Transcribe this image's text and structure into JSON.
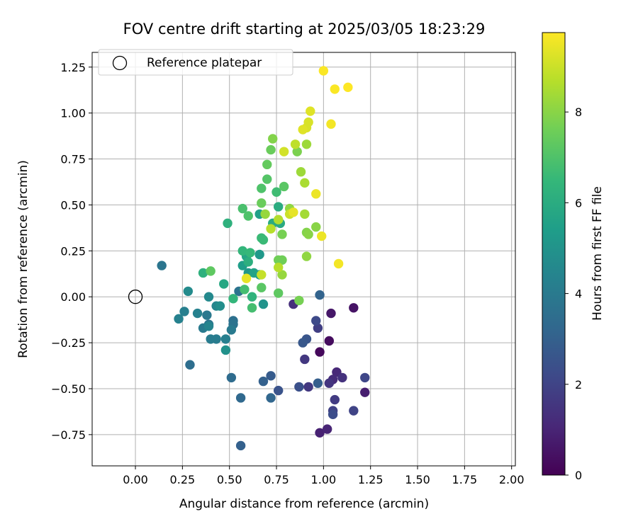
{
  "chart_data": {
    "type": "scatter",
    "title": "FOV centre drift starting at 2025/03/05 18:23:29",
    "xlabel": "Angular distance from reference (arcmin)",
    "ylabel": "Rotation from reference (arcmin)",
    "xlim": [
      -0.23,
      2.02
    ],
    "ylim": [
      -0.92,
      1.33
    ],
    "xticks": [
      "0.00",
      "0.25",
      "0.50",
      "0.75",
      "1.00",
      "1.25",
      "1.50",
      "1.75",
      "2.00"
    ],
    "xtick_values": [
      0,
      0.25,
      0.5,
      0.75,
      1.0,
      1.25,
      1.5,
      1.75,
      2.0
    ],
    "yticks": [
      "−0.75",
      "−0.50",
      "−0.25",
      "0.00",
      "0.25",
      "0.50",
      "0.75",
      "1.00",
      "1.25"
    ],
    "ytick_values": [
      -0.75,
      -0.5,
      -0.25,
      0,
      0.25,
      0.5,
      0.75,
      1.0,
      1.25
    ],
    "grid": true,
    "legend": {
      "placement": "top-left",
      "label": "Reference platepar"
    },
    "reference_point": {
      "x": 0.0,
      "y": 0.0
    },
    "colorbar": {
      "label": "Hours from first FF file",
      "colormap": "viridis",
      "range": [
        0,
        9.75
      ],
      "ticks": [
        "0",
        "2",
        "4",
        "6",
        "8"
      ],
      "tick_values": [
        0,
        2,
        4,
        6,
        8
      ],
      "stops": [
        "#440154",
        "#482878",
        "#3e4989",
        "#31688e",
        "#26828e",
        "#1f9e89",
        "#35b779",
        "#6ece58",
        "#b5de2b",
        "#fde725"
      ]
    },
    "points": [
      {
        "x": 0.98,
        "y": -0.3,
        "h": 0.2
      },
      {
        "x": 1.03,
        "y": -0.24,
        "h": 0.3
      },
      {
        "x": 1.16,
        "y": -0.06,
        "h": 0.5
      },
      {
        "x": 1.04,
        "y": -0.09,
        "h": 0.6
      },
      {
        "x": 1.22,
        "y": -0.52,
        "h": 0.8
      },
      {
        "x": 0.98,
        "y": -0.74,
        "h": 0.9
      },
      {
        "x": 1.02,
        "y": -0.72,
        "h": 1.0
      },
      {
        "x": 1.07,
        "y": -0.41,
        "h": 1.1
      },
      {
        "x": 1.05,
        "y": -0.45,
        "h": 1.2
      },
      {
        "x": 0.84,
        "y": -0.04,
        "h": 1.3
      },
      {
        "x": 1.1,
        "y": -0.44,
        "h": 1.4
      },
      {
        "x": 1.03,
        "y": -0.47,
        "h": 1.5
      },
      {
        "x": 0.92,
        "y": -0.49,
        "h": 1.6
      },
      {
        "x": 0.9,
        "y": -0.34,
        "h": 1.6
      },
      {
        "x": 1.06,
        "y": -0.56,
        "h": 1.7
      },
      {
        "x": 0.97,
        "y": -0.17,
        "h": 1.8
      },
      {
        "x": 1.05,
        "y": -0.62,
        "h": 1.9
      },
      {
        "x": 1.16,
        "y": -0.62,
        "h": 2.0
      },
      {
        "x": 1.22,
        "y": -0.44,
        "h": 2.1
      },
      {
        "x": 0.96,
        "y": -0.13,
        "h": 2.2
      },
      {
        "x": 1.05,
        "y": -0.64,
        "h": 2.3
      },
      {
        "x": 0.87,
        "y": -0.49,
        "h": 2.4
      },
      {
        "x": 0.76,
        "y": -0.51,
        "h": 2.5
      },
      {
        "x": 0.91,
        "y": -0.23,
        "h": 2.6
      },
      {
        "x": 0.89,
        "y": -0.25,
        "h": 2.7
      },
      {
        "x": 0.72,
        "y": -0.43,
        "h": 2.8
      },
      {
        "x": 0.97,
        "y": -0.47,
        "h": 2.9
      },
      {
        "x": 0.68,
        "y": -0.46,
        "h": 3.0
      },
      {
        "x": 0.56,
        "y": -0.81,
        "h": 3.0
      },
      {
        "x": 0.98,
        "y": 0.01,
        "h": 3.1
      },
      {
        "x": 0.72,
        "y": -0.55,
        "h": 3.2
      },
      {
        "x": 0.56,
        "y": -0.55,
        "h": 3.3
      },
      {
        "x": 0.51,
        "y": -0.44,
        "h": 3.4
      },
      {
        "x": 0.29,
        "y": -0.37,
        "h": 3.5
      },
      {
        "x": 0.52,
        "y": -0.13,
        "h": 3.6
      },
      {
        "x": 0.55,
        "y": 0.03,
        "h": 3.7
      },
      {
        "x": 0.52,
        "y": -0.15,
        "h": 3.7
      },
      {
        "x": 0.39,
        "y": -0.15,
        "h": 3.8
      },
      {
        "x": 0.14,
        "y": 0.17,
        "h": 3.8
      },
      {
        "x": 0.38,
        "y": -0.1,
        "h": 3.9
      },
      {
        "x": 0.36,
        "y": -0.17,
        "h": 4.0
      },
      {
        "x": 0.51,
        "y": -0.18,
        "h": 4.0
      },
      {
        "x": 0.43,
        "y": -0.23,
        "h": 4.1
      },
      {
        "x": 0.4,
        "y": -0.23,
        "h": 4.1
      },
      {
        "x": 0.48,
        "y": -0.23,
        "h": 4.2
      },
      {
        "x": 0.26,
        "y": -0.08,
        "h": 4.2
      },
      {
        "x": 0.23,
        "y": -0.12,
        "h": 4.3
      },
      {
        "x": 0.33,
        "y": -0.09,
        "h": 4.3
      },
      {
        "x": 0.39,
        "y": -0.16,
        "h": 4.4
      },
      {
        "x": 0.43,
        "y": -0.05,
        "h": 4.5
      },
      {
        "x": 0.39,
        "y": 0.0,
        "h": 4.6
      },
      {
        "x": 0.28,
        "y": 0.03,
        "h": 4.7
      },
      {
        "x": 0.45,
        "y": -0.05,
        "h": 4.8
      },
      {
        "x": 0.48,
        "y": -0.29,
        "h": 4.9
      },
      {
        "x": 0.68,
        "y": -0.04,
        "h": 5.0
      },
      {
        "x": 0.6,
        "y": 0.13,
        "h": 5.1
      },
      {
        "x": 0.66,
        "y": 0.23,
        "h": 5.2
      },
      {
        "x": 0.66,
        "y": 0.12,
        "h": 5.3
      },
      {
        "x": 0.57,
        "y": 0.17,
        "h": 5.4
      },
      {
        "x": 0.66,
        "y": 0.45,
        "h": 5.5
      },
      {
        "x": 0.63,
        "y": 0.13,
        "h": 5.6
      },
      {
        "x": 0.59,
        "y": 0.22,
        "h": 5.7
      },
      {
        "x": 0.47,
        "y": 0.07,
        "h": 5.8
      },
      {
        "x": 0.77,
        "y": 0.4,
        "h": 5.9
      },
      {
        "x": 0.73,
        "y": 0.4,
        "h": 6.0
      },
      {
        "x": 0.76,
        "y": 0.49,
        "h": 6.0
      },
      {
        "x": 0.6,
        "y": 0.19,
        "h": 6.1
      },
      {
        "x": 0.36,
        "y": 0.13,
        "h": 6.2
      },
      {
        "x": 0.49,
        "y": 0.4,
        "h": 6.2
      },
      {
        "x": 0.62,
        "y": 0.0,
        "h": 6.3
      },
      {
        "x": 0.52,
        "y": -0.01,
        "h": 6.4
      },
      {
        "x": 0.57,
        "y": 0.25,
        "h": 6.4
      },
      {
        "x": 0.61,
        "y": 0.24,
        "h": 6.5
      },
      {
        "x": 0.67,
        "y": 0.32,
        "h": 6.6
      },
      {
        "x": 0.68,
        "y": 0.31,
        "h": 6.6
      },
      {
        "x": 0.75,
        "y": 0.57,
        "h": 6.7
      },
      {
        "x": 0.58,
        "y": 0.04,
        "h": 6.8
      },
      {
        "x": 0.62,
        "y": -0.06,
        "h": 6.8
      },
      {
        "x": 0.57,
        "y": 0.48,
        "h": 6.9
      },
      {
        "x": 0.6,
        "y": 0.44,
        "h": 7.0
      },
      {
        "x": 0.67,
        "y": 0.59,
        "h": 7.0
      },
      {
        "x": 0.7,
        "y": 0.64,
        "h": 7.1
      },
      {
        "x": 0.79,
        "y": 0.6,
        "h": 7.2
      },
      {
        "x": 0.67,
        "y": 0.05,
        "h": 7.2
      },
      {
        "x": 0.4,
        "y": 0.14,
        "h": 7.3
      },
      {
        "x": 0.76,
        "y": 0.02,
        "h": 7.3
      },
      {
        "x": 0.7,
        "y": 0.72,
        "h": 7.4
      },
      {
        "x": 0.72,
        "y": 0.8,
        "h": 7.5
      },
      {
        "x": 0.67,
        "y": 0.51,
        "h": 7.5
      },
      {
        "x": 0.78,
        "y": 0.2,
        "h": 7.6
      },
      {
        "x": 0.76,
        "y": 0.2,
        "h": 7.6
      },
      {
        "x": 0.78,
        "y": 0.34,
        "h": 7.7
      },
      {
        "x": 0.87,
        "y": -0.02,
        "h": 7.7
      },
      {
        "x": 0.86,
        "y": 0.79,
        "h": 7.8
      },
      {
        "x": 0.73,
        "y": 0.86,
        "h": 7.9
      },
      {
        "x": 0.91,
        "y": 0.35,
        "h": 7.9
      },
      {
        "x": 0.92,
        "y": 0.34,
        "h": 8.0
      },
      {
        "x": 0.96,
        "y": 0.38,
        "h": 8.0
      },
      {
        "x": 0.91,
        "y": 0.22,
        "h": 8.1
      },
      {
        "x": 0.82,
        "y": 0.48,
        "h": 8.1
      },
      {
        "x": 0.69,
        "y": 0.45,
        "h": 8.2
      },
      {
        "x": 0.78,
        "y": 0.12,
        "h": 8.2
      },
      {
        "x": 0.91,
        "y": 0.83,
        "h": 8.3
      },
      {
        "x": 0.88,
        "y": 0.68,
        "h": 8.3
      },
      {
        "x": 0.9,
        "y": 0.45,
        "h": 8.4
      },
      {
        "x": 0.9,
        "y": 0.62,
        "h": 8.5
      },
      {
        "x": 0.76,
        "y": 0.42,
        "h": 8.6
      },
      {
        "x": 0.72,
        "y": 0.37,
        "h": 8.7
      },
      {
        "x": 0.76,
        "y": 0.16,
        "h": 8.7
      },
      {
        "x": 0.85,
        "y": 0.83,
        "h": 8.8
      },
      {
        "x": 0.67,
        "y": 0.12,
        "h": 8.9
      },
      {
        "x": 0.82,
        "y": 0.45,
        "h": 9.0
      },
      {
        "x": 0.79,
        "y": 0.79,
        "h": 9.1
      },
      {
        "x": 0.92,
        "y": 0.95,
        "h": 9.2
      },
      {
        "x": 0.91,
        "y": 0.92,
        "h": 9.2
      },
      {
        "x": 0.89,
        "y": 0.91,
        "h": 9.3
      },
      {
        "x": 0.93,
        "y": 1.01,
        "h": 9.3
      },
      {
        "x": 0.59,
        "y": 0.1,
        "h": 9.4
      },
      {
        "x": 0.84,
        "y": 0.46,
        "h": 9.4
      },
      {
        "x": 0.96,
        "y": 0.56,
        "h": 9.5
      },
      {
        "x": 0.99,
        "y": 0.33,
        "h": 9.5
      },
      {
        "x": 1.04,
        "y": 0.94,
        "h": 9.6
      },
      {
        "x": 1.08,
        "y": 0.18,
        "h": 9.6
      },
      {
        "x": 1.0,
        "y": 1.23,
        "h": 9.7
      },
      {
        "x": 1.06,
        "y": 1.13,
        "h": 9.7
      },
      {
        "x": 1.13,
        "y": 1.14,
        "h": 9.75
      }
    ]
  }
}
